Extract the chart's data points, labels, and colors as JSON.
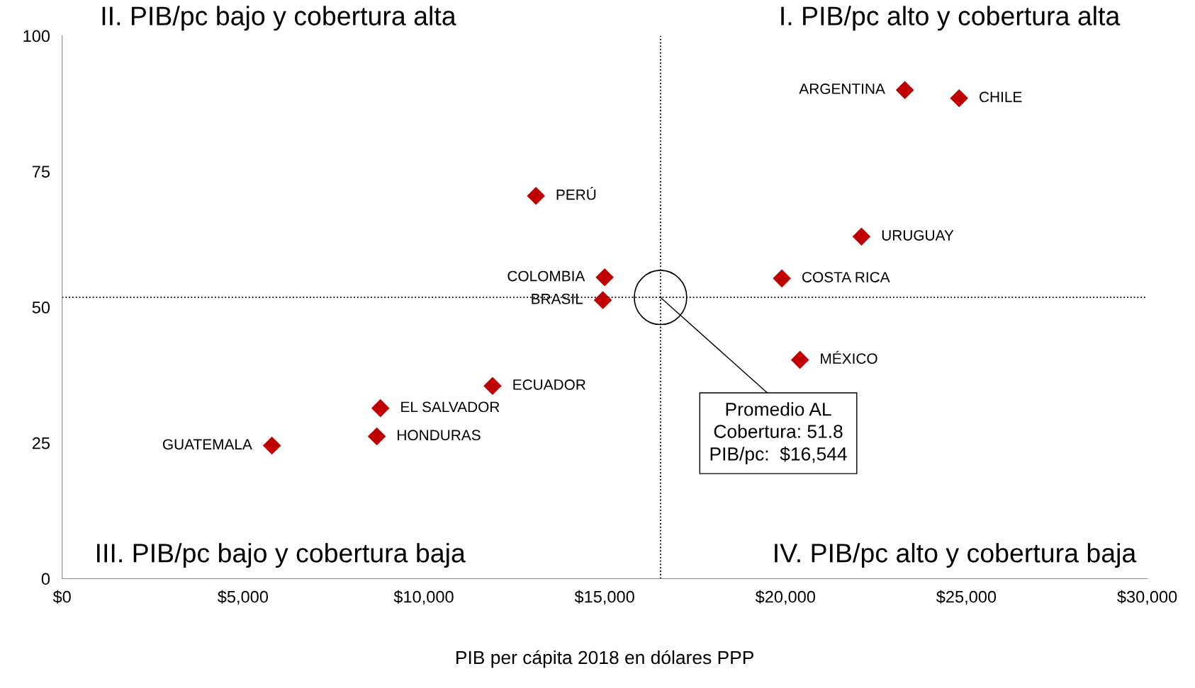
{
  "chart_data": {
    "type": "scatter",
    "xlabel": "PIB per cápita 2018 en dólares PPP",
    "x": [
      23300,
      24800,
      13100,
      22100,
      15000,
      19900,
      14950,
      20400,
      11900,
      8800,
      8700,
      5800
    ],
    "values": [
      90,
      88.5,
      70.5,
      63,
      55.5,
      55.3,
      51.3,
      40.3,
      35.5,
      31.4,
      26.2,
      24.5
    ],
    "color": "#c00000",
    "marker": "diamond",
    "grid": false,
    "xlim": [
      0,
      30000
    ],
    "xticks": [
      {
        "value": 0,
        "label": "$0"
      },
      {
        "value": 5000,
        "label": "$5,000"
      },
      {
        "value": 10000,
        "label": "$10,000"
      },
      {
        "value": 15000,
        "label": "$15,000"
      },
      {
        "value": 20000,
        "label": "$20,000"
      },
      {
        "value": 25000,
        "label": "$25,000"
      },
      {
        "value": 30000,
        "label": "$30,000"
      }
    ],
    "ylim": [
      0,
      100
    ],
    "yticks": [
      0,
      25,
      50,
      75,
      100
    ],
    "ref_lines": [
      {
        "axis": "x",
        "value": 16544,
        "line_style": "dotted",
        "color": "#000000"
      },
      {
        "axis": "y",
        "value": 51.8,
        "line_style": "dotted",
        "color": "#000000"
      }
    ],
    "annotations": [
      {
        "text": "ARGENTINA",
        "x": 23300,
        "y": 90
      },
      {
        "text": "CHILE",
        "x": 24800,
        "y": 88.5
      },
      {
        "text": "PERÚ",
        "x": 13100,
        "y": 70.5
      },
      {
        "text": "URUGUAY",
        "x": 22100,
        "y": 63
      },
      {
        "text": "COLOMBIA",
        "x": 15000,
        "y": 55.5
      },
      {
        "text": "COSTA RICA",
        "x": 19900,
        "y": 55.3
      },
      {
        "text": "BRASIL",
        "x": 14950,
        "y": 51.3
      },
      {
        "text": "MÉXICO",
        "x": 20400,
        "y": 40.3
      },
      {
        "text": "ECUADOR",
        "x": 11900,
        "y": 35.5
      },
      {
        "text": "EL SALVADOR",
        "x": 8800,
        "y": 31.4
      },
      {
        "text": "HONDURAS",
        "x": 8700,
        "y": 26.2
      },
      {
        "text": "GUATEMALA",
        "x": 5800,
        "y": 24.5
      },
      {
        "text": "Promedio AL\nCobertura: 51.8\nPIB/pc:  $16,544",
        "x": 16544,
        "y": 51.8
      },
      "II. PIB/pc bajo y cobertura alta",
      "I. PIB/pc alto y cobertura alta",
      "III. PIB/pc bajo y cobertura baja",
      "IV. PIB/pc alto y cobertura baja"
    ]
  }
}
